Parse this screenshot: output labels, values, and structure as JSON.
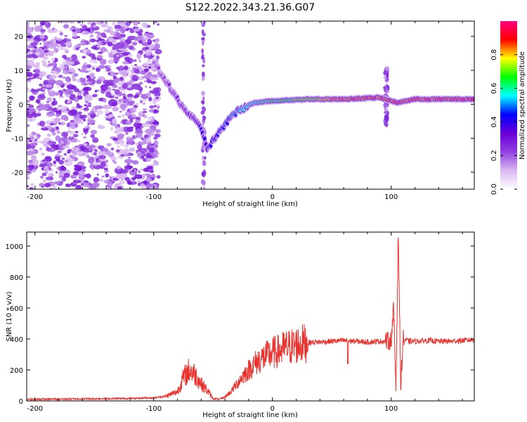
{
  "title": "S122.2022.343.21.36.G07",
  "chart_data": [
    {
      "type": "heatmap",
      "xlabel": "Height of straight line (km)",
      "ylabel": "Frequency (Hz)",
      "xlim": [
        -207,
        170
      ],
      "ylim": [
        -25,
        24.5
      ],
      "xticks": [
        -200,
        -100,
        0,
        100
      ],
      "yticks": [
        -20,
        -10,
        0,
        10,
        20
      ],
      "colorbar": {
        "label": "Normalized spectral amplitude",
        "range": [
          0,
          1
        ],
        "ticks": [
          0.0,
          0.2,
          0.4,
          0.6,
          0.8
        ],
        "ticklabels": [
          "0.0",
          "0.2",
          "0.4",
          "0.6",
          "0.8"
        ],
        "colormap": [
          "#ffffff",
          "#d8b8f0",
          "#9040e0",
          "#6a00d8",
          "#0000ff",
          "#00ffff",
          "#00ff00",
          "#ffff00",
          "#ff0000",
          "#ff0080"
        ]
      },
      "features": [
        {
          "name": "noise region",
          "x_range": [
            -207,
            -100
          ],
          "f_range": [
            -25,
            24.5
          ],
          "amplitude": 0.15
        },
        {
          "name": "main trace",
          "points": [
            [
              -100,
              12.5
            ],
            [
              -85,
              4
            ],
            [
              -75,
              -1
            ],
            [
              -60,
              -7
            ],
            [
              -55,
              -13
            ],
            [
              -40,
              -6
            ],
            [
              -30,
              -2
            ],
            [
              -15,
              0.5
            ],
            [
              0,
              1
            ],
            [
              30,
              1.5
            ],
            [
              60,
              1.5
            ],
            [
              90,
              2
            ],
            [
              105,
              0.5
            ],
            [
              120,
              1.5
            ],
            [
              170,
              1.5
            ]
          ],
          "amplitude_start": 0.25,
          "amplitude_end": 0.95
        },
        {
          "name": "vertical streak",
          "x": -58,
          "f_range": [
            -25,
            24.5
          ]
        },
        {
          "name": "vertical streak",
          "x": 96,
          "f_range": [
            -6,
            11
          ]
        }
      ]
    },
    {
      "type": "line",
      "xlabel": "Height of straight line (km)",
      "ylabel": "SNR (10 * v/v)",
      "xlim": [
        -207,
        170
      ],
      "ylim": [
        0,
        1090
      ],
      "xticks": [
        -200,
        -100,
        0,
        100
      ],
      "yticks": [
        0,
        200,
        400,
        600,
        800,
        1000
      ],
      "color": "#e8322d",
      "series": [
        {
          "x": [
            -207,
            -180,
            -150,
            -120,
            -100,
            -90,
            -80,
            -75,
            -70,
            -65,
            -60,
            -55,
            -50,
            -45,
            -40,
            -35,
            -30,
            -25,
            -20,
            -15,
            -10,
            -5,
            0,
            5,
            10,
            15,
            20,
            25,
            30,
            35,
            40,
            50,
            60,
            70,
            80,
            90,
            95,
            100,
            102,
            104,
            106,
            108,
            110,
            115,
            120,
            130,
            140,
            150,
            160,
            170
          ],
          "y": [
            10,
            12,
            14,
            16,
            20,
            30,
            60,
            150,
            200,
            170,
            110,
            70,
            15,
            10,
            25,
            60,
            110,
            160,
            200,
            240,
            270,
            290,
            310,
            320,
            340,
            350,
            360,
            370,
            375,
            380,
            380,
            385,
            390,
            385,
            380,
            385,
            385,
            390,
            600,
            80,
            1090,
            100,
            400,
            385,
            385,
            390,
            385,
            385,
            390,
            395
          ]
        }
      ]
    }
  ]
}
